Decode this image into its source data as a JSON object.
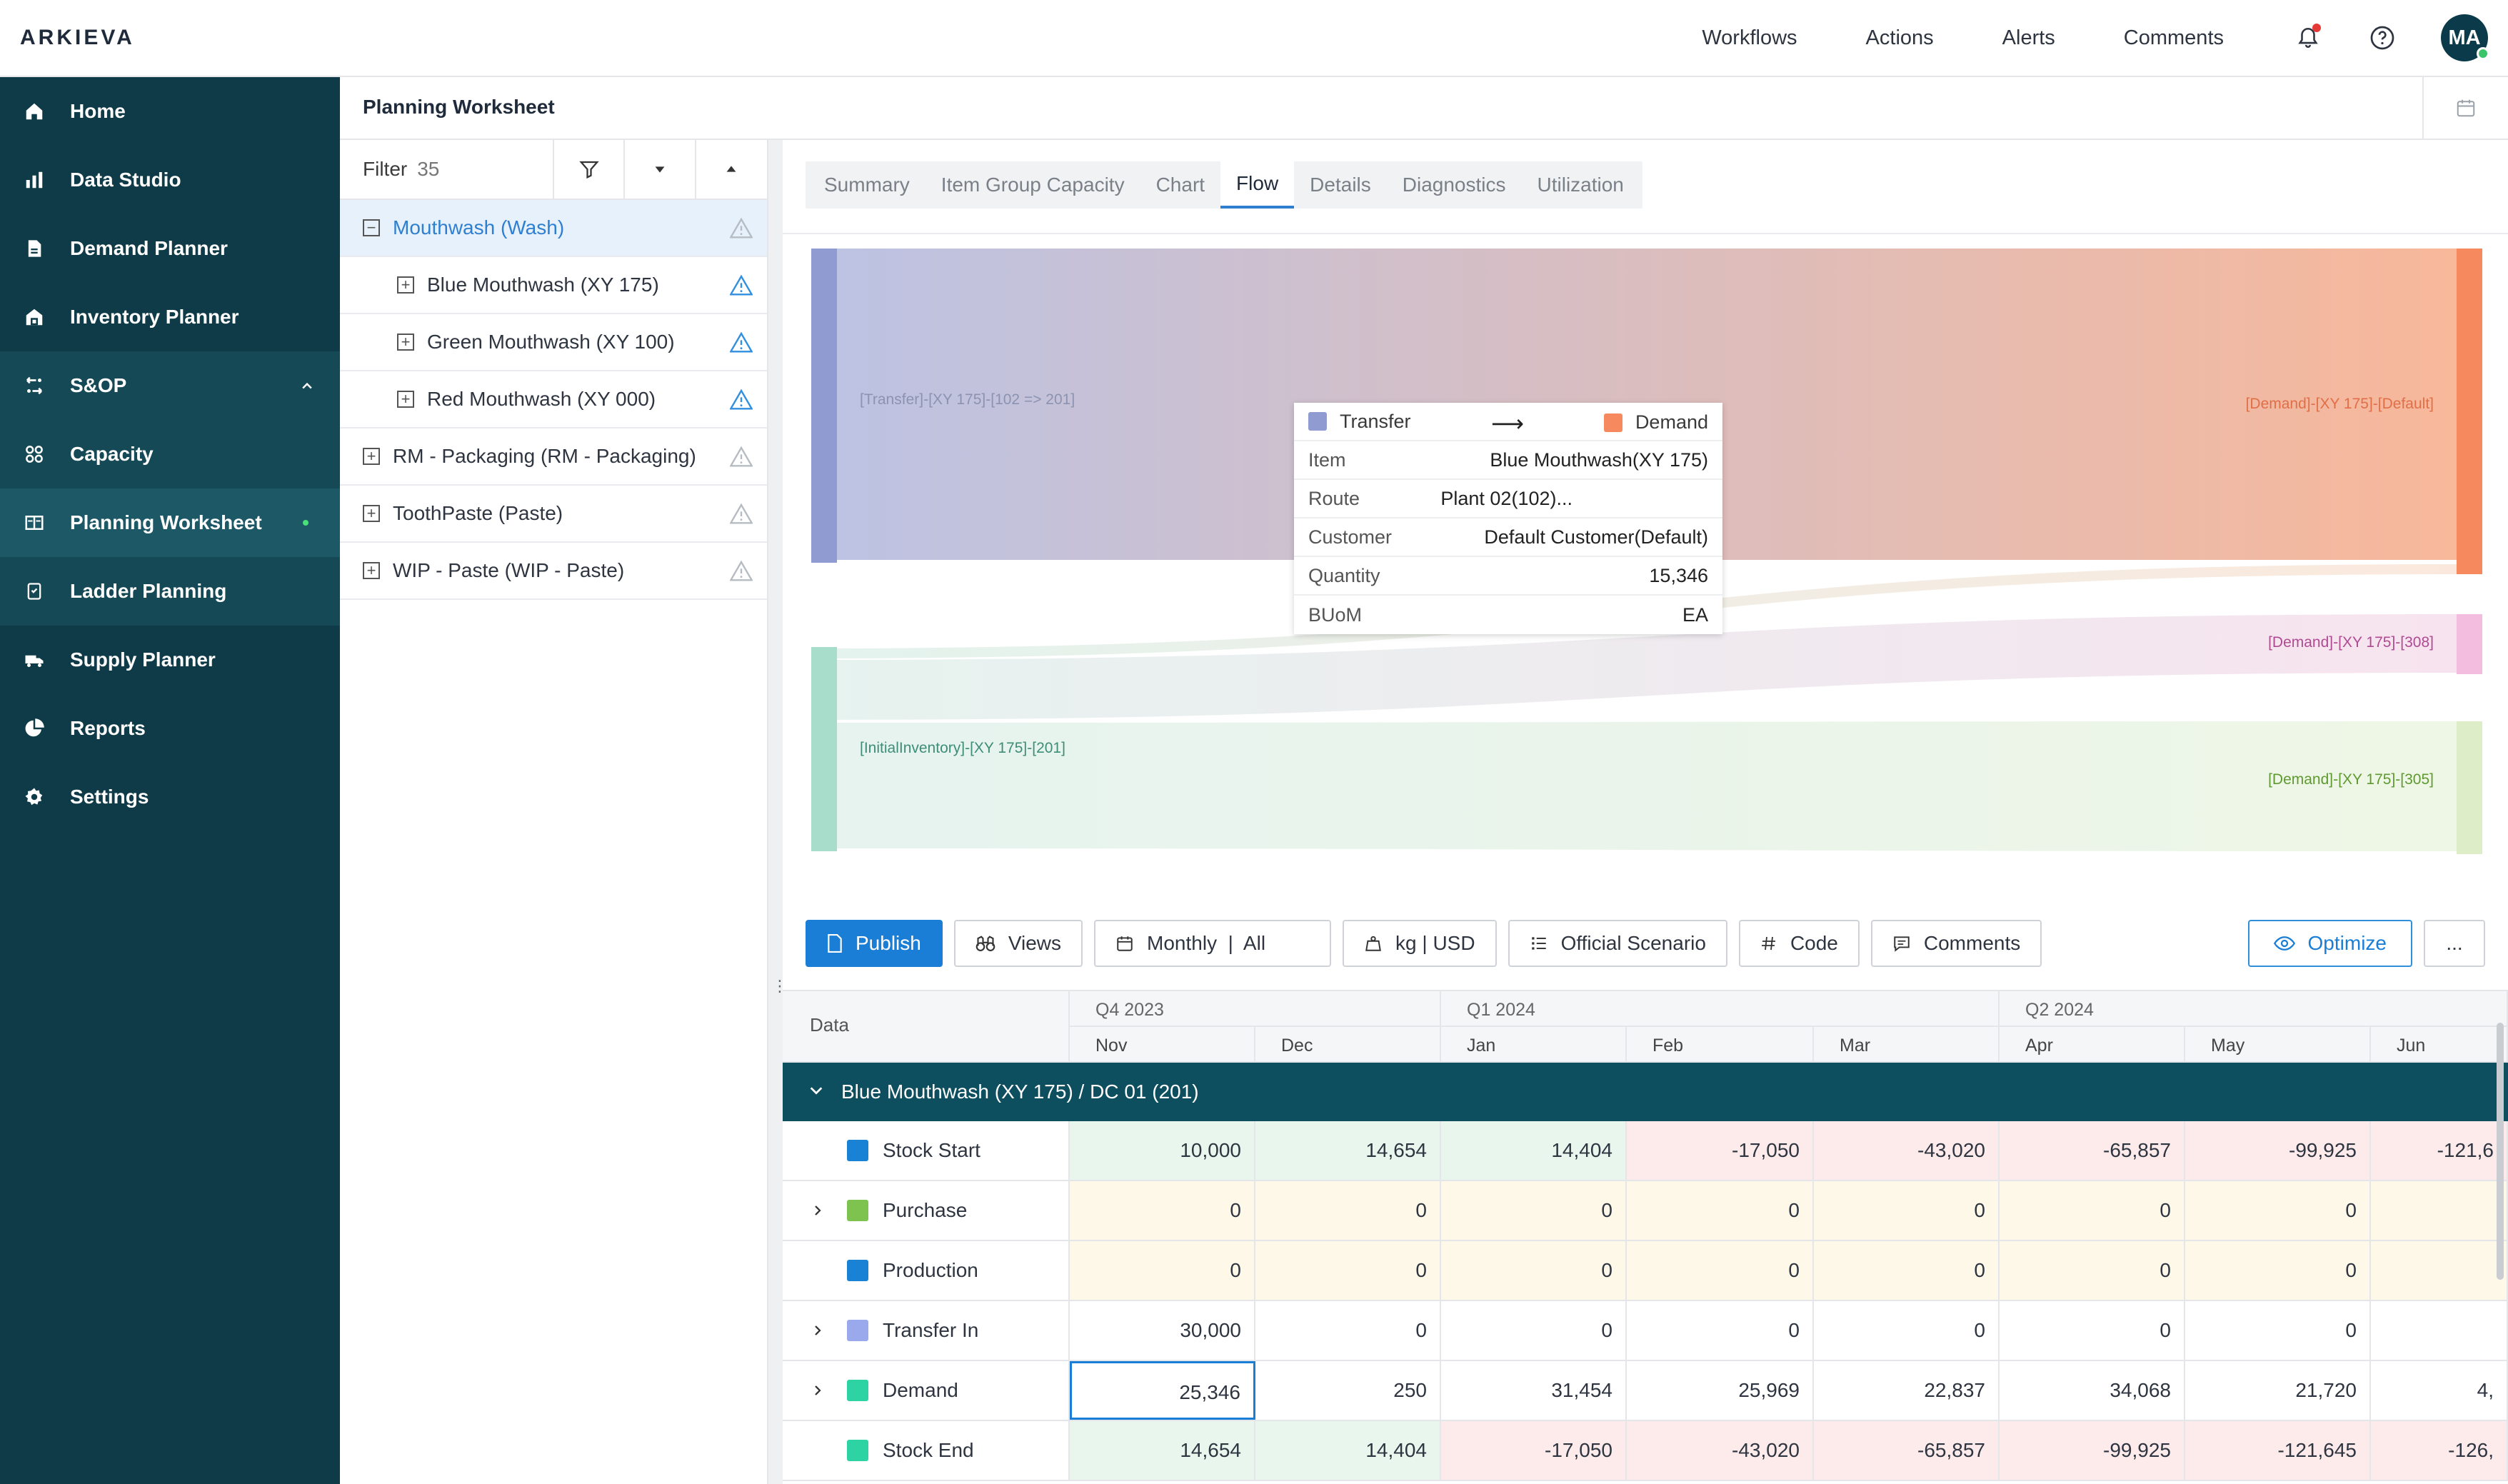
{
  "app": {
    "logo": "ARKIEVA"
  },
  "topnav": {
    "links": [
      "Workflows",
      "Actions",
      "Alerts",
      "Comments"
    ],
    "avatar_initials": "MA"
  },
  "sidebar": {
    "items": [
      {
        "label": "Home",
        "icon": "home-icon"
      },
      {
        "label": "Data Studio",
        "icon": "data-studio-icon"
      },
      {
        "label": "Demand Planner",
        "icon": "document-icon"
      },
      {
        "label": "Inventory Planner",
        "icon": "inventory-icon"
      },
      {
        "label": "S&OP",
        "icon": "sop-icon"
      },
      {
        "label": "Capacity",
        "icon": "capacity-icon"
      },
      {
        "label": "Planning Worksheet",
        "icon": "worksheet-icon"
      },
      {
        "label": "Ladder Planning",
        "icon": "ladder-icon"
      },
      {
        "label": "Supply Planner",
        "icon": "supply-icon"
      },
      {
        "label": "Reports",
        "icon": "pie-chart-icon"
      },
      {
        "label": "Settings",
        "icon": "gear-icon"
      }
    ]
  },
  "worksheet": {
    "title": "Planning Worksheet"
  },
  "tree": {
    "filter_label": "Filter",
    "filter_count": "35",
    "rows": [
      {
        "label": "Mouthwash (Wash)",
        "level": 0,
        "selected": true,
        "expanded": true,
        "warn": "grey"
      },
      {
        "label": "Blue Mouthwash (XY 175)",
        "level": 1,
        "warn": "blue"
      },
      {
        "label": "Green Mouthwash (XY 100)",
        "level": 1,
        "warn": "blue"
      },
      {
        "label": "Red Mouthwash (XY 000)",
        "level": 1,
        "warn": "blue"
      },
      {
        "label": "RM - Packaging (RM - Packaging)",
        "level": 0,
        "warn": "grey"
      },
      {
        "label": "ToothPaste (Paste)",
        "level": 0,
        "warn": "grey"
      },
      {
        "label": "WIP - Paste (WIP - Paste)",
        "level": 0,
        "warn": "grey"
      }
    ]
  },
  "tabs": [
    "Summary",
    "Item Group Capacity",
    "Chart",
    "Flow",
    "Details",
    "Diagnostics",
    "Utilization"
  ],
  "active_tab": "Flow",
  "flow": {
    "labels": {
      "transfer_src": "[Transfer]-[XY 175]-[102 => 201]",
      "initial_inv": "[InitialInventory]-[XY 175]-[201]",
      "demand_default": "[Demand]-[XY 175]-[Default]",
      "demand_308": "[Demand]-[XY 175]-[308]",
      "demand_305": "[Demand]-[XY 175]-[305]"
    },
    "colors": {
      "transfer": "#8f9bd1",
      "demand_default": "#f6895e",
      "initial_inv": "#a8dccb",
      "demand_308": "#f3bddf",
      "demand_305": "#dcedc8"
    },
    "tooltip": {
      "from": "Transfer",
      "to": "Demand",
      "rows": [
        {
          "k": "Item",
          "v": "Blue Mouthwash(XY 175)"
        },
        {
          "k": "Route",
          "v": "Plant 02(102)..."
        },
        {
          "k": "Customer",
          "v": "Default Customer(Default)"
        },
        {
          "k": "Quantity",
          "v": "15,346"
        },
        {
          "k": "BUoM",
          "v": "EA"
        }
      ]
    }
  },
  "toolbar": {
    "publish": "Publish",
    "views": "Views",
    "period": "Monthly  |  All",
    "units": "kg | USD",
    "scenario": "Official Scenario",
    "code": "Code",
    "comments": "Comments",
    "optimize": "Optimize",
    "more": "..."
  },
  "grid": {
    "data_header": "Data",
    "quarters": [
      "Q4 2023",
      "Q1 2024",
      "Q2 2024"
    ],
    "months": [
      "Nov",
      "Dec",
      "Jan",
      "Feb",
      "Mar",
      "Apr",
      "May",
      "Jun"
    ],
    "group_title": "Blue Mouthwash (XY 175) / DC 01 (201)",
    "rows": [
      {
        "label": "Stock Start",
        "color": "#1a82d4",
        "expandable": false,
        "values": [
          "10,000",
          "14,654",
          "14,404",
          "-17,050",
          "-43,020",
          "-65,857",
          "-99,925",
          "-121,6"
        ]
      },
      {
        "label": "Purchase",
        "color": "#7ec34f",
        "expandable": true,
        "values": [
          "0",
          "0",
          "0",
          "0",
          "0",
          "0",
          "0",
          ""
        ]
      },
      {
        "label": "Production",
        "color": "#1a82d4",
        "expandable": false,
        "values": [
          "0",
          "0",
          "0",
          "0",
          "0",
          "0",
          "0",
          ""
        ]
      },
      {
        "label": "Transfer In",
        "color": "#9aa9ec",
        "expandable": true,
        "values": [
          "30,000",
          "0",
          "0",
          "0",
          "0",
          "0",
          "0",
          ""
        ]
      },
      {
        "label": "Demand",
        "color": "#2ed3a4",
        "expandable": true,
        "values": [
          "25,346",
          "250",
          "31,454",
          "25,969",
          "22,837",
          "34,068",
          "21,720",
          "4,"
        ]
      },
      {
        "label": "Stock End",
        "color": "#2ed3a4",
        "expandable": false,
        "values": [
          "14,654",
          "14,404",
          "-17,050",
          "-43,020",
          "-65,857",
          "-99,925",
          "-121,645",
          "-126,"
        ]
      }
    ]
  }
}
